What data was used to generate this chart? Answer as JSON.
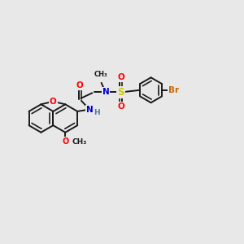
{
  "background_color": "#e8e8e8",
  "bond_color": "#1a1a1a",
  "bond_width": 1.4,
  "atom_colors": {
    "O": "#ff0000",
    "N": "#0000cc",
    "S": "#cccc00",
    "Br": "#cc6600",
    "C": "#1a1a1a"
  },
  "font_size_small": 6.5,
  "font_size_med": 7.5,
  "font_size_large": 8.5,
  "xlim": [
    0,
    10
  ],
  "ylim": [
    0,
    10
  ]
}
